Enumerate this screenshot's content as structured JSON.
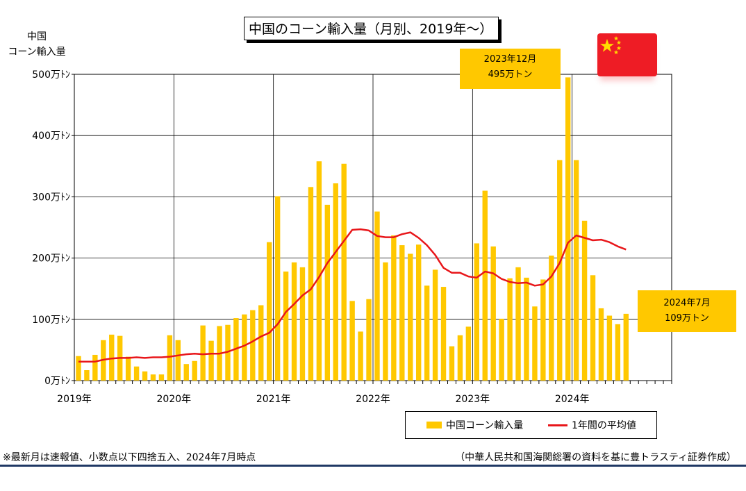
{
  "title": "中国のコーン輸入量（月別、2019年〜）",
  "y_axis_title_line1": "中国",
  "y_axis_title_line2": "コーン輸入量",
  "callouts": {
    "peak": {
      "line1": "2023年12月",
      "line2": "495万トン"
    },
    "latest": {
      "line1": "2024年7月",
      "line2": "109万トン"
    }
  },
  "legend": {
    "bar_label": "中国コーン輸入量",
    "line_label": "1年間の平均値"
  },
  "footnote": "※最新月は速報値、小数点以下四捨五入、2024年7月時点",
  "source": "（中華人民共和国海関総署の資料を基に豊トラスティ証券作成）",
  "colors": {
    "bar": "#ffc800",
    "line": "#e8161a",
    "grid": "#000000",
    "flag_red": "#ee1c25",
    "flag_star": "#ffde00",
    "rule": "#1f3864"
  },
  "icons": {
    "flag": "china-flag-icon"
  },
  "chart_data": {
    "type": "bar",
    "title": "中国のコーン輸入量（月別、2019年〜）",
    "ylabel": "中国 コーン輸入量",
    "ylim": [
      0,
      500
    ],
    "y_unit": "万トン",
    "yticks": [
      "0万ﾄﾝ",
      "100万ﾄﾝ",
      "200万ﾄﾝ",
      "300万ﾄﾝ",
      "400万ﾄﾝ",
      "500万ﾄﾝ"
    ],
    "xticks": [
      "2019年",
      "2020年",
      "2021年",
      "2022年",
      "2023年",
      "2024年"
    ],
    "grid": true,
    "legend_position": "bottom-right",
    "x_months": 72,
    "series": [
      {
        "name": "中国コーン輸入量",
        "type": "bar",
        "values": [
          40,
          17,
          42,
          66,
          75,
          73,
          39,
          23,
          15,
          10,
          10,
          74,
          66,
          27,
          32,
          90,
          65,
          89,
          91,
          102,
          108,
          115,
          123,
          226,
          301,
          178,
          193,
          185,
          316,
          358,
          287,
          322,
          354,
          130,
          80,
          133,
          276,
          193,
          237,
          221,
          207,
          222,
          155,
          181,
          153,
          56,
          74,
          88,
          224,
          310,
          219,
          101,
          167,
          185,
          168,
          121,
          165,
          204,
          360,
          495,
          360,
          261,
          172,
          118,
          106,
          92,
          109
        ]
      },
      {
        "name": "1年間の平均値",
        "type": "line",
        "values": [
          31,
          31,
          31,
          34,
          36,
          37,
          37,
          38,
          37,
          38,
          38,
          39,
          41,
          43,
          44,
          43,
          44,
          44,
          47,
          52,
          57,
          64,
          72,
          78,
          92,
          112,
          125,
          139,
          149,
          169,
          192,
          210,
          228,
          246,
          247,
          245,
          236,
          234,
          234,
          239,
          242,
          233,
          221,
          205,
          184,
          176,
          176,
          170,
          168,
          178,
          175,
          166,
          161,
          159,
          160,
          155,
          157,
          170,
          192,
          225,
          237,
          233,
          229,
          230,
          226,
          219,
          214
        ]
      }
    ]
  }
}
